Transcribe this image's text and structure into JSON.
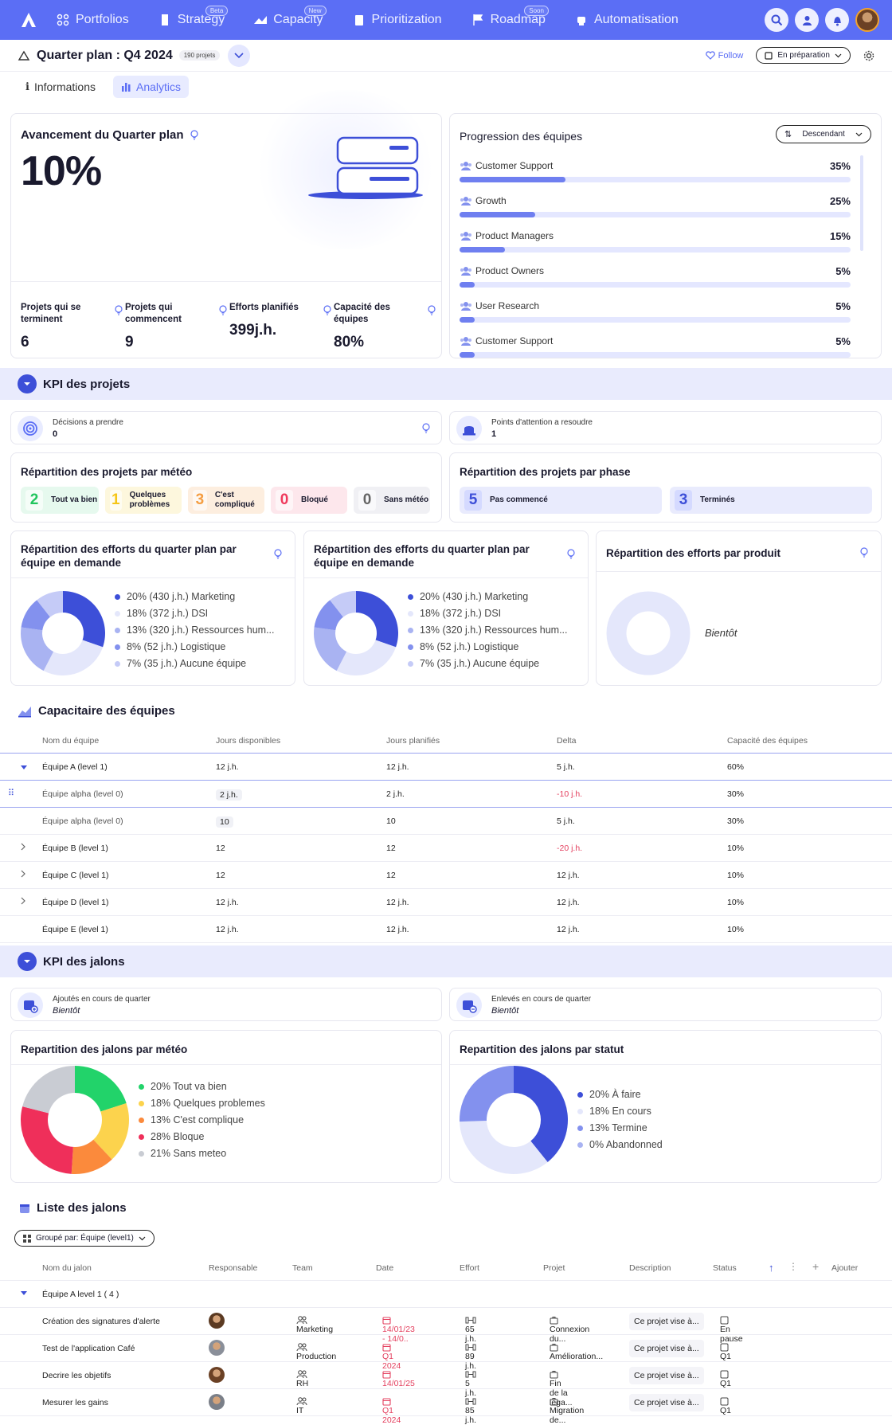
{
  "nav": {
    "items": [
      {
        "label": "Portfolios",
        "badge": ""
      },
      {
        "label": "Strategy",
        "badge": "Beta"
      },
      {
        "label": "Capacity",
        "badge": "New"
      },
      {
        "label": "Prioritization",
        "badge": ""
      },
      {
        "label": "Roadmap",
        "badge": "Soon"
      },
      {
        "label": "Automatisation",
        "badge": ""
      }
    ]
  },
  "header": {
    "title": "Quarter plan : Q4 2024",
    "count": "190 projets",
    "follow": "Follow",
    "status": "En préparation"
  },
  "tabs": {
    "informations": "Informations",
    "analytics": "Analytics"
  },
  "avancement": {
    "title": "Avancement du Quarter plan",
    "value": "10%",
    "progress": 0.1,
    "metrics": [
      {
        "label": "Projets qui se terminent",
        "value": "6"
      },
      {
        "label": "Projets qui commencent",
        "value": "9"
      },
      {
        "label": "Efforts planifiés",
        "value": "399j.h."
      },
      {
        "label": "Capacité des équipes",
        "value": "80%"
      }
    ]
  },
  "progression": {
    "title": "Progression des équipes",
    "sort": "Descendant",
    "teams": [
      {
        "name": "Customer Support",
        "pct": "35%",
        "value": 35
      },
      {
        "name": "Growth",
        "pct": "25%",
        "value": 25
      },
      {
        "name": "Product Managers",
        "pct": "15%",
        "value": 15
      },
      {
        "name": "Product Owners",
        "pct": "5%",
        "value": 5
      },
      {
        "name": "User Research",
        "pct": "5%",
        "value": 5
      },
      {
        "name": "Customer Support",
        "pct": "5%",
        "value": 5
      }
    ]
  },
  "kpi_projets": {
    "title": "KPI des projets",
    "decisions": {
      "label": "Décisions a prendre",
      "value": "0"
    },
    "attention": {
      "label": "Points d'attention a resoudre",
      "value": "1"
    }
  },
  "meteo": {
    "title": "Répartition des projets par météo",
    "items": [
      {
        "num": "2",
        "label": "Tout va bien",
        "color": "#22c55e",
        "bg": "#e6f9ee"
      },
      {
        "num": "1",
        "label": "Quelques problèmes",
        "color": "#f5c518",
        "bg": "#fdf7dd"
      },
      {
        "num": "3",
        "label": "C'est compliqué",
        "color": "#f59e42",
        "bg": "#fdeedf"
      },
      {
        "num": "0",
        "label": "Bloqué",
        "color": "#ef3b5d",
        "bg": "#fde7ec"
      },
      {
        "num": "0",
        "label": "Sans météo",
        "color": "#666666",
        "bg": "#f0f0f4"
      }
    ]
  },
  "phase": {
    "title": "Répartition des projets par phase",
    "items": [
      {
        "num": "5",
        "label": "Pas commencé"
      },
      {
        "num": "3",
        "label": "Terminés"
      }
    ]
  },
  "efforts1": {
    "title": "Répartition des efforts du quarter plan  par équipe en demande"
  },
  "efforts2": {
    "title": "Répartition des efforts du quarter plan  par équipe en demande"
  },
  "efforts_legend": [
    {
      "label": "20% (430 j.h.) Marketing",
      "value": 20,
      "color": "#3d4fd8"
    },
    {
      "label": "18% (372 j.h.) DSI",
      "value": 18,
      "color": "#e4e7fb"
    },
    {
      "label": "13% (320 j.h.) Ressources hum...",
      "value": 13,
      "color": "#a9b3f2"
    },
    {
      "label": "8% (52 j.h.) Logistique",
      "value": 8,
      "color": "#8391ee"
    },
    {
      "label": "7% (35 j.h.) Aucune équipe",
      "value": 7,
      "color": "#c5cbf7"
    }
  ],
  "efforts3": {
    "title": "Répartition des efforts par produit",
    "soon": "Bientôt"
  },
  "capacitaire": {
    "title": "Capacitaire des équipes",
    "headers": [
      "Nom du équipe",
      "Jours disponibles",
      "Jours planifiés",
      "Delta",
      "Capacité des équipes"
    ],
    "rows": [
      {
        "name": "Équipe A (level 1)",
        "dispo": "12 j.h.",
        "plan": "12 j.h.",
        "delta": "5 j.h.",
        "cap": "60%",
        "neg": false,
        "sub": false,
        "caret": "down"
      },
      {
        "name": "Équipe alpha (level 0)",
        "dispo": "2 j.h.",
        "plan": "2 j.h.",
        "delta": "-10 j.h.",
        "cap": "30%",
        "neg": true,
        "sub": true,
        "caret": "drag"
      },
      {
        "name": "Équipe alpha (level 0)",
        "dispo": "10",
        "plan": "10",
        "delta": "5 j.h.",
        "cap": "30%",
        "neg": false,
        "sub": true,
        "caret": ""
      },
      {
        "name": "Équipe B (level 1)",
        "dispo": "12",
        "plan": "12",
        "delta": "-20 j.h.",
        "cap": "10%",
        "neg": true,
        "sub": false,
        "caret": "right"
      },
      {
        "name": "Équipe C (level 1)",
        "dispo": "12",
        "plan": "12",
        "delta": "12 j.h.",
        "cap": "10%",
        "neg": false,
        "sub": false,
        "caret": "right"
      },
      {
        "name": "Équipe D (level 1)",
        "dispo": "12 j.h.",
        "plan": "12 j.h.",
        "delta": "12 j.h.",
        "cap": "10%",
        "neg": false,
        "sub": false,
        "caret": "right"
      },
      {
        "name": "Équipe E (level 1)",
        "dispo": "12 j.h.",
        "plan": "12 j.h.",
        "delta": "12 j.h.",
        "cap": "10%",
        "neg": false,
        "sub": false,
        "caret": ""
      }
    ]
  },
  "kpi_jalons": {
    "title": "KPI des jalons",
    "ajoutes": {
      "label": "Ajoutés en cours de quarter",
      "value": "Bientôt"
    },
    "enleves": {
      "label": "Enlevés en cours de quarter",
      "value": "Bientôt"
    }
  },
  "jalons_meteo": {
    "title": "Repartition des jalons par météo",
    "legend": [
      {
        "label": "20% Tout va bien",
        "value": 20,
        "color": "#22d36a"
      },
      {
        "label": "18% Quelques problemes",
        "value": 18,
        "color": "#fcd34d"
      },
      {
        "label": "13% C'est complique",
        "value": 13,
        "color": "#fb8a3c"
      },
      {
        "label": "28% Bloque",
        "value": 28,
        "color": "#ef2f5a"
      },
      {
        "label": "21% Sans meteo",
        "value": 21,
        "color": "#c9ccd3"
      }
    ]
  },
  "jalons_statut": {
    "title": "Repartition des jalons par statut",
    "legend": [
      {
        "label": "20% À faire",
        "value": 20,
        "color": "#3d4fd8"
      },
      {
        "label": "18% En cours",
        "value": 18,
        "color": "#e4e7fb"
      },
      {
        "label": "13% Termine",
        "value": 13,
        "color": "#8391ee"
      },
      {
        "label": "0% Abandonned",
        "value": 0,
        "color": "#a9b3f2"
      }
    ]
  },
  "liste": {
    "title": "Liste des jalons",
    "group": "Groupé par: Équipe (level1)",
    "headers": [
      "Nom du jalon",
      "Responsable",
      "Team",
      "Date",
      "Effort",
      "Projet",
      "Description",
      "Status"
    ],
    "add": "Ajouter",
    "group_row": "Équipe A level 1 ( 4 )",
    "rows": [
      {
        "name": "Création des signatures d'alerte",
        "team": "Marketing",
        "date": "14/01/23 - 14/0..",
        "effort": "65 j.h.",
        "projet": "Connexion du...",
        "desc": "Ce projet vise à...",
        "status": "En pause"
      },
      {
        "name": "Test de l'application Café",
        "team": "Production",
        "date": "Q1 2024",
        "effort": "89 j.h.",
        "projet": "Amélioration...",
        "desc": "Ce projet vise à...",
        "status": "Q1"
      },
      {
        "name": "Decrire les objetifs",
        "team": "RH",
        "date": "14/01/25",
        "effort": "5 j.h.",
        "projet": "Fin de la lega...",
        "desc": "Ce projet vise à...",
        "status": "Q1"
      },
      {
        "name": "Mesurer les gains",
        "team": "IT",
        "date": "Q1 2024",
        "effort": "85 j.h.",
        "projet": "Migration de...",
        "desc": "Ce projet vise à...",
        "status": "Q1"
      }
    ]
  }
}
